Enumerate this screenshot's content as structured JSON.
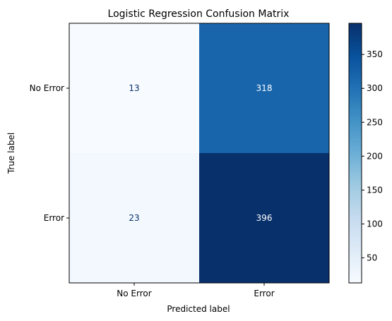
{
  "chart_data": {
    "type": "heatmap",
    "title": "Logistic Regression Confusion Matrix",
    "xlabel": "Predicted label",
    "ylabel": "True label",
    "x_categories": [
      "No Error",
      "Error"
    ],
    "y_categories": [
      "No Error",
      "Error"
    ],
    "values": [
      [
        13,
        318
      ],
      [
        23,
        396
      ]
    ],
    "colormap": "Blues",
    "colorbar": {
      "min": 13,
      "max": 396,
      "ticks": [
        50,
        100,
        150,
        200,
        250,
        300,
        350
      ],
      "tick_labels": [
        "50",
        "100",
        "150",
        "200",
        "250",
        "300",
        "350"
      ]
    },
    "text_color_light": "#ffffff",
    "text_color_dark": "#08306b"
  }
}
